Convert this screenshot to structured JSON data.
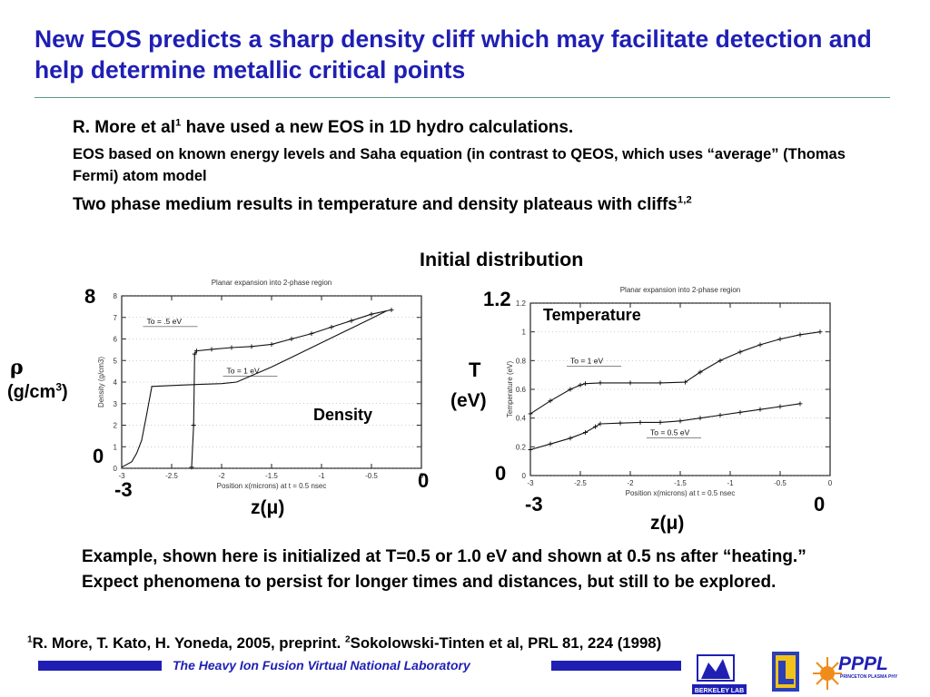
{
  "slide": {
    "title": "New EOS predicts a sharp density cliff which may facilitate detection and help determine metallic critical points",
    "bullet1_text": "R. More et al",
    "bullet1_sup": "1",
    "bullet1_rest": " have used a new EOS in 1D hydro calculations.",
    "bullet2_text": "EOS based on known energy levels and Saha equation (in contrast to QEOS, which uses “average” (Thomas Fermi) atom model",
    "bullet3_text": "Two phase medium results in  temperature and density plateaus with cliffs",
    "bullet3_sup": "1,2",
    "initial_distribution": "Initial distribution",
    "example_text": "Example, shown here is initialized at T=0.5 or 1.0 eV and shown at 0.5 ns after “heating.”  Expect phenomena to persist for longer times and distances, but still to be explored.",
    "footnote": {
      "sup1": "1",
      "ref1": "R. More, T. Kato, H. Yoneda, 2005, preprint.  ",
      "sup2": "2",
      "ref2": "Sokolowski-Tinten et al, PRL 81, 224 (1998)"
    },
    "footer": {
      "text": "The Heavy Ion Fusion Virtual National Laboratory",
      "bar_color": "#1f1fb4",
      "logos": [
        "BERKELEY LAB",
        "LLNL",
        "PPPL"
      ],
      "pppl_subtitle": "PRINCETON PLASMA PHYSICS LABORATORY"
    }
  },
  "density_plot": {
    "overlay": {
      "y_top": "8",
      "y_zero": "0",
      "x_left": "-3",
      "x_right": "0",
      "ylabel_symbol": "ρ",
      "ylabel_units": "(g/cm",
      "ylabel_units_sup": "3",
      "ylabel_units_close": ")",
      "xlabel": "z(μ)",
      "panel_label": "Density"
    }
  },
  "temperature_plot": {
    "overlay": {
      "y_top": "1.2",
      "y_zero": "0",
      "x_left": "-3",
      "x_right": "0",
      "ylabel_T": "T",
      "ylabel_units": "(eV)",
      "xlabel": "z(μ)",
      "panel_label": "Temperature"
    }
  },
  "chart_data": [
    {
      "type": "line",
      "title": "Planar expansion into 2-phase region",
      "xlabel": "Position x(microns) at t = 0.5 nsec",
      "ylabel": "Density (g/cm3)",
      "xlim": [
        -3,
        0
      ],
      "ylim": [
        0,
        8
      ],
      "xticks": [
        "-3",
        "-2.5",
        "-2",
        "-1.5",
        "-1",
        "-0.5",
        "0"
      ],
      "yticks": [
        "0",
        "1",
        "2",
        "3",
        "4",
        "5",
        "6",
        "7",
        "8"
      ],
      "annotations": [
        "To = .5 eV",
        "To = 1 eV"
      ],
      "series": [
        {
          "name": "To = 1 eV",
          "x": [
            -3,
            -2.9,
            -2.85,
            -2.8,
            -2.75,
            -2.7,
            -2.7,
            -2.6,
            -2.4,
            -2.2,
            -2.0,
            -1.85,
            -1.7,
            -1.5,
            -1.3,
            -1.1,
            -0.9,
            -0.7,
            -0.5,
            -0.35
          ],
          "y": [
            0.05,
            0.3,
            0.7,
            1.3,
            2.5,
            3.75,
            3.8,
            3.82,
            3.86,
            3.9,
            3.93,
            4.0,
            4.3,
            4.7,
            5.15,
            5.6,
            6.05,
            6.5,
            6.95,
            7.3
          ],
          "marker": "line"
        },
        {
          "name": "To = .5 eV",
          "x": [
            -2.3,
            -2.28,
            -2.27,
            -2.25,
            -2.1,
            -1.9,
            -1.7,
            -1.5,
            -1.3,
            -1.1,
            -0.9,
            -0.7,
            -0.5,
            -0.3
          ],
          "y": [
            0.05,
            2.0,
            5.3,
            5.45,
            5.52,
            5.6,
            5.65,
            5.75,
            6.0,
            6.25,
            6.55,
            6.85,
            7.15,
            7.35
          ],
          "marker": "plus"
        }
      ]
    },
    {
      "type": "line",
      "title": "Planar expansion into 2-phase region",
      "xlabel": "Position x(microns) at t = 0.5 nsec",
      "ylabel": "Temperature (eV)",
      "xlim": [
        -3,
        0
      ],
      "ylim": [
        0,
        1.2
      ],
      "xticks": [
        "-3",
        "-2.5",
        "-2",
        "-1.5",
        "-1",
        "-0.5",
        "0"
      ],
      "yticks": [
        "0",
        "0.2",
        "0.4",
        "0.6",
        "0.8",
        "1",
        "1.2"
      ],
      "annotations": [
        "To = 1 eV",
        "To = 0.5 eV"
      ],
      "series": [
        {
          "name": "To = 1 eV",
          "x": [
            -3,
            -2.8,
            -2.6,
            -2.5,
            -2.45,
            -2.3,
            -2.0,
            -1.7,
            -1.45,
            -1.3,
            -1.1,
            -0.9,
            -0.7,
            -0.5,
            -0.3,
            -0.1
          ],
          "y": [
            0.43,
            0.52,
            0.6,
            0.63,
            0.64,
            0.645,
            0.645,
            0.645,
            0.65,
            0.72,
            0.8,
            0.86,
            0.91,
            0.95,
            0.98,
            1.0
          ],
          "marker": "plus"
        },
        {
          "name": "To = 0.5 eV",
          "x": [
            -3,
            -2.8,
            -2.6,
            -2.45,
            -2.35,
            -2.3,
            -2.1,
            -1.9,
            -1.7,
            -1.5,
            -1.3,
            -1.1,
            -0.9,
            -0.7,
            -0.5,
            -0.3
          ],
          "y": [
            0.18,
            0.22,
            0.26,
            0.3,
            0.34,
            0.36,
            0.365,
            0.37,
            0.37,
            0.38,
            0.4,
            0.42,
            0.44,
            0.46,
            0.48,
            0.5
          ],
          "marker": "plus"
        }
      ]
    }
  ]
}
